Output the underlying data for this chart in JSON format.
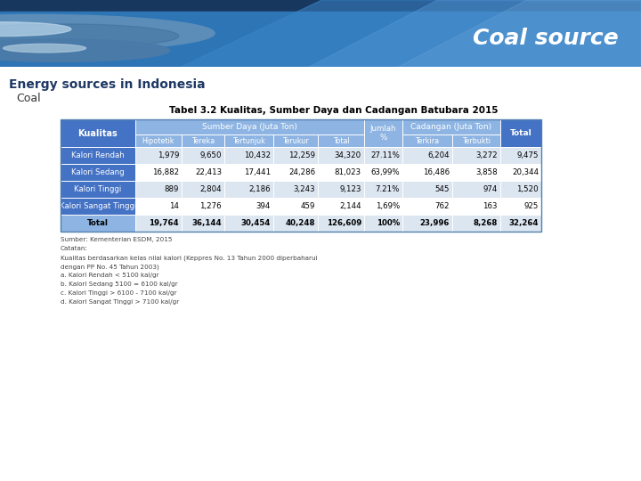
{
  "title": "Coal source",
  "section_title": "Energy sources in Indonesia",
  "subsection": "Coal",
  "table_title": "Tabel 3.2 Kualitas, Sumber Daya dan Cadangan Batubara 2015",
  "rows": [
    [
      "Kalori Rendah",
      "1,979",
      "9,650",
      "10,432",
      "12,259",
      "34,320",
      "27.11%",
      "6,204",
      "3,272",
      "9,475"
    ],
    [
      "Kalori Sedang",
      "16,882",
      "22,413",
      "17,441",
      "24,286",
      "81,023",
      "63,99%",
      "16,486",
      "3,858",
      "20,344"
    ],
    [
      "Kalori Tinggi",
      "889",
      "2,804",
      "2,186",
      "3,243",
      "9,123",
      "7.21%",
      "545",
      "974",
      "1,520"
    ],
    [
      "Kalori Sangat Tinggi",
      "14",
      "1,276",
      "394",
      "459",
      "2,144",
      "1,69%",
      "762",
      "163",
      "925"
    ],
    [
      "Total",
      "19,764",
      "36,144",
      "30,454",
      "40,248",
      "126,609",
      "100%",
      "23,996",
      "8,268",
      "32,264"
    ]
  ],
  "footnotes": [
    "Sumber: Kementerian ESDM, 2015",
    "Catatan:",
    "Kualitas berdasarkan kelas nilai kalori (Keppres No. 13 Tahun 2000 diperbaharui",
    "dengan PP No. 45 Tahun 2003)",
    "a. Kalori Rendah < 5100 kal/gr",
    "b. Kalori Sedang 5100 = 6100 kal/gr",
    "c. Kalori Tinggi > 6100 - 7100 kal/gr",
    "d. Kalori Sangat Tinggi > 7100 kal/gr"
  ],
  "header_bg": "#4472C4",
  "subheader_bg": "#8DB4E2",
  "row_bg_odd": "#DCE6F1",
  "row_bg_even": "#FFFFFF",
  "section_title_color": "#1F3864",
  "bg_color": "#FFFFFF"
}
